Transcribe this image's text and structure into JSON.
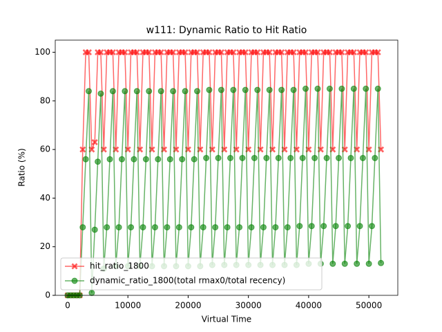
{
  "chart_data": {
    "type": "line",
    "title": "w111: Dynamic Ratio to Hit Ratio",
    "xlabel": "Virtual Time",
    "ylabel": "Ratio (%)",
    "x": [
      0,
      500,
      1000,
      1500,
      2000,
      2500,
      3000,
      3500,
      4000,
      4500,
      5000,
      5500,
      6000,
      6500,
      7000,
      7500,
      8000,
      8500,
      9000,
      9500,
      10000,
      10500,
      11000,
      11500,
      12000,
      12500,
      13000,
      13500,
      14000,
      14500,
      15000,
      15500,
      16000,
      16500,
      17000,
      17500,
      18000,
      18500,
      19000,
      19500,
      20000,
      20500,
      21000,
      21500,
      22000,
      22500,
      23000,
      23500,
      24000,
      24500,
      25000,
      25500,
      26000,
      26500,
      27000,
      27500,
      28000,
      28500,
      29000,
      29500,
      30000,
      30500,
      31000,
      31500,
      32000,
      32500,
      33000,
      33500,
      34000,
      34500,
      35000,
      35500,
      36000,
      36500,
      37000,
      37500,
      38000,
      38500,
      39000,
      39500,
      40000,
      40500,
      41000,
      41500,
      42000,
      42500,
      43000,
      43500,
      44000,
      44500,
      45000,
      45500,
      46000,
      46500,
      47000,
      47500,
      48000,
      48500,
      49000,
      49500,
      50000,
      50500,
      51000,
      51500,
      52000
    ],
    "series": [
      {
        "name": "hit_ratio_1800",
        "color": "red",
        "marker": "X",
        "values": [
          0,
          0,
          0,
          0,
          0,
          60,
          100,
          100,
          60,
          63,
          100,
          100,
          60,
          100,
          100,
          100,
          60,
          100,
          100,
          100,
          60,
          100,
          100,
          100,
          60,
          100,
          100,
          100,
          60,
          100,
          100,
          100,
          60,
          100,
          100,
          100,
          60,
          100,
          100,
          100,
          60,
          100,
          100,
          100,
          60,
          100,
          100,
          100,
          60,
          100,
          100,
          100,
          60,
          100,
          100,
          100,
          60,
          100,
          100,
          100,
          60,
          100,
          100,
          100,
          60,
          100,
          100,
          100,
          60,
          100,
          100,
          100,
          60,
          100,
          100,
          100,
          60,
          100,
          100,
          100,
          60,
          100,
          100,
          100,
          60,
          100,
          100,
          100,
          60,
          100,
          100,
          100,
          60,
          100,
          100,
          100,
          60,
          100,
          100,
          100,
          60,
          100,
          100,
          100,
          60
        ]
      },
      {
        "name": "dynamic_ratio_1800(total rmax0/total recency)",
        "color": "green",
        "marker": "o",
        "values": [
          0,
          0,
          0,
          0,
          0,
          28,
          56,
          84,
          1,
          27,
          55,
          83,
          11,
          28,
          56,
          84,
          12,
          28,
          56,
          84,
          12,
          28,
          56,
          84,
          12,
          28,
          56,
          84,
          12,
          28,
          56,
          84,
          12,
          28,
          56,
          84,
          12,
          28,
          56,
          84,
          12,
          28,
          56,
          84,
          12,
          28,
          56.5,
          84.5,
          12.5,
          28,
          56.5,
          84.5,
          12.5,
          28,
          56.5,
          84.5,
          12.5,
          28,
          56.5,
          84.5,
          12.5,
          28,
          56.5,
          84.5,
          12.5,
          28,
          56.5,
          84.5,
          12.5,
          28,
          56.5,
          84.5,
          12.5,
          28,
          56.5,
          84.5,
          12.5,
          28.5,
          56.5,
          85,
          13,
          28.5,
          56.5,
          85,
          13,
          28.5,
          56.5,
          85,
          13,
          28.5,
          56.5,
          85,
          13,
          28.5,
          56.5,
          85,
          13,
          28.5,
          56.5,
          85,
          13,
          28.5,
          56.5,
          85,
          13.3
        ]
      }
    ],
    "alpha": 0.6,
    "xlim": [
      -2060,
      54800
    ],
    "xticks": [
      0,
      10000,
      20000,
      30000,
      40000,
      50000
    ],
    "ylim": [
      0,
      105
    ],
    "yticks": [
      0,
      20,
      40,
      60,
      80,
      100
    ],
    "legend": "lower left"
  }
}
